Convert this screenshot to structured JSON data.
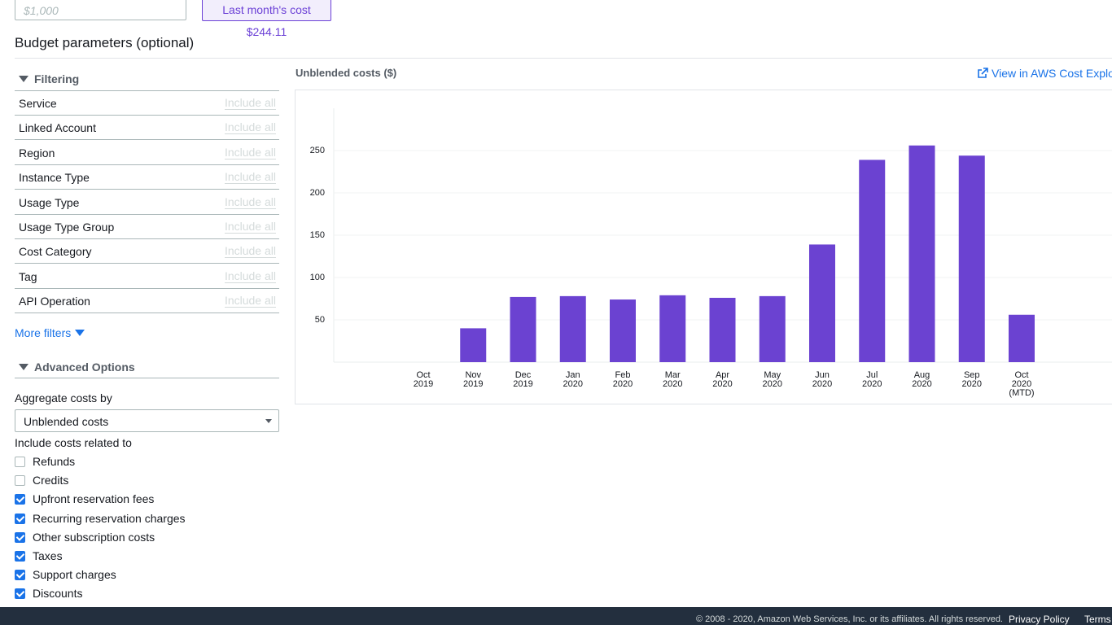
{
  "budget_input": {
    "placeholder": "$1,000"
  },
  "last_month_cost": "Last month's cost $244.11",
  "section_title": "Budget parameters (optional)",
  "filtering": {
    "title": "Filtering",
    "rows": [
      {
        "label": "Service",
        "value": "Include all"
      },
      {
        "label": "Linked Account",
        "value": "Include all"
      },
      {
        "label": "Region",
        "value": "Include all"
      },
      {
        "label": "Instance Type",
        "value": "Include all"
      },
      {
        "label": "Usage Type",
        "value": "Include all"
      },
      {
        "label": "Usage Type Group",
        "value": "Include all"
      },
      {
        "label": "Cost Category",
        "value": "Include all"
      },
      {
        "label": "Tag",
        "value": "Include all"
      },
      {
        "label": "API Operation",
        "value": "Include all"
      }
    ]
  },
  "more_filters": "More filters",
  "advanced": {
    "title": "Advanced Options",
    "aggregate_label": "Aggregate costs by",
    "aggregate_value": "Unblended costs",
    "include_label": "Include costs related to",
    "options": [
      {
        "label": "Refunds",
        "checked": false
      },
      {
        "label": "Credits",
        "checked": false
      },
      {
        "label": "Upfront reservation fees",
        "checked": true
      },
      {
        "label": "Recurring reservation charges",
        "checked": true
      },
      {
        "label": "Other subscription costs",
        "checked": true
      },
      {
        "label": "Taxes",
        "checked": true
      },
      {
        "label": "Support charges",
        "checked": true
      },
      {
        "label": "Discounts",
        "checked": true
      }
    ]
  },
  "chart_data": {
    "type": "bar",
    "title": "Unblended costs ($)",
    "link": "View in AWS Cost Explorer",
    "categories": [
      "Oct 2019",
      "Nov 2019",
      "Dec 2019",
      "Jan 2020",
      "Feb 2020",
      "Mar 2020",
      "Apr 2020",
      "May 2020",
      "Jun 2020",
      "Jul 2020",
      "Aug 2020",
      "Sep 2020",
      "Oct 2020 (MTD)"
    ],
    "values": [
      0,
      40,
      77,
      78,
      74,
      79,
      76,
      78,
      139,
      239,
      256,
      244,
      56
    ],
    "color": "#6b42d1",
    "ylim": [
      0,
      300
    ],
    "yticks": [
      50,
      100,
      150,
      200,
      250
    ],
    "grid": true
  },
  "footer": {
    "copyright": "© 2008 - 2020, Amazon Web Services, Inc. or its affiliates. All rights reserved.",
    "privacy": "Privacy Policy",
    "terms": "Terms"
  }
}
